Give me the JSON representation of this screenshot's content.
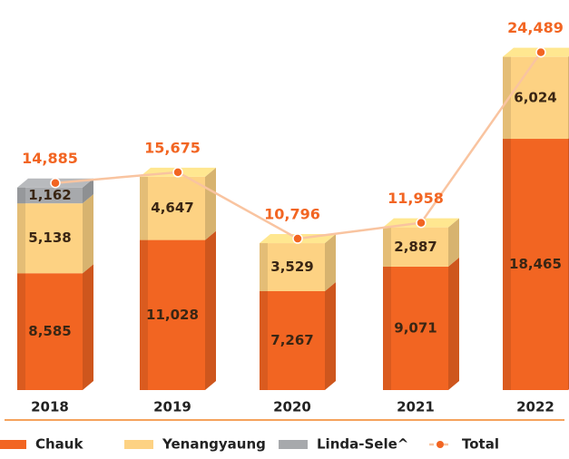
{
  "chart_data": {
    "type": "stacked-bar-line",
    "categories": [
      "2018",
      "2019",
      "2020",
      "2021",
      "2022"
    ],
    "ylim": [
      0,
      26000
    ],
    "series": [
      {
        "name": "Chauk",
        "color": "#f26522",
        "values": [
          8585,
          11028,
          7267,
          9071,
          18465
        ],
        "value_labels": [
          "8,585",
          "11,028",
          "7,267",
          "9,071",
          "18,465"
        ]
      },
      {
        "name": "Yenangyaung",
        "color": "#fdd283",
        "values": [
          5138,
          4647,
          3529,
          2887,
          6024
        ],
        "value_labels": [
          "5,138",
          "4,647",
          "3,529",
          "2,887",
          "6,024"
        ]
      },
      {
        "name": "Linda-Sele^",
        "color": "#a7a9ac",
        "values": [
          1162,
          null,
          null,
          null,
          null
        ],
        "value_labels": [
          "1,162",
          null,
          null,
          null,
          null
        ]
      },
      {
        "name": "Total",
        "type": "line",
        "color": "#f9c4a0",
        "marker_color": "#f26522",
        "values": [
          14885,
          15675,
          10796,
          11958,
          24489
        ],
        "value_labels": [
          "14,885",
          "15,675",
          "10,796",
          "11,958",
          "24,489"
        ]
      }
    ]
  }
}
